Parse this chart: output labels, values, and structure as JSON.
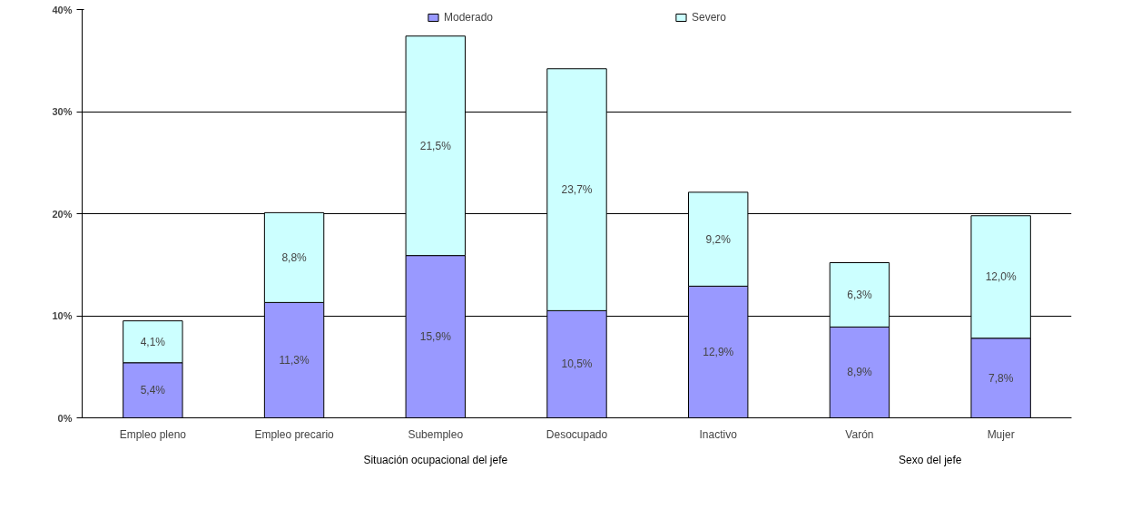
{
  "chart_data": {
    "type": "bar",
    "stacked": true,
    "categories": [
      "Empleo pleno",
      "Empleo precario",
      "Subempleo",
      "Desocupado",
      "Inactivo",
      "Varón",
      "Mujer"
    ],
    "series": [
      {
        "name": "Moderado",
        "color": "#9999ff",
        "values": [
          5.4,
          11.3,
          15.9,
          10.5,
          12.9,
          8.9,
          7.8
        ],
        "value_labels": [
          "5,4%",
          "11,3%",
          "15,9%",
          "10,5%",
          "12,9%",
          "8,9%",
          "7,8%"
        ]
      },
      {
        "name": "Severo",
        "color": "#ccffff",
        "values": [
          4.1,
          8.8,
          21.5,
          23.7,
          9.2,
          6.3,
          12.0
        ],
        "value_labels": [
          "4,1%",
          "8,8%",
          "21,5%",
          "23,7%",
          "9,2%",
          "6,3%",
          "12,0%"
        ]
      }
    ],
    "ylim": [
      0,
      40
    ],
    "yticks": [
      {
        "value": 0,
        "label": "0%"
      },
      {
        "value": 10,
        "label": "10%"
      },
      {
        "value": 20,
        "label": "20%"
      },
      {
        "value": 30,
        "label": "30%"
      },
      {
        "value": 40,
        "label": "40%"
      }
    ],
    "grid": "y",
    "legend": "top",
    "annotations": [
      "Situación ocupacional del jefe",
      "Sexo del jefe"
    ]
  }
}
